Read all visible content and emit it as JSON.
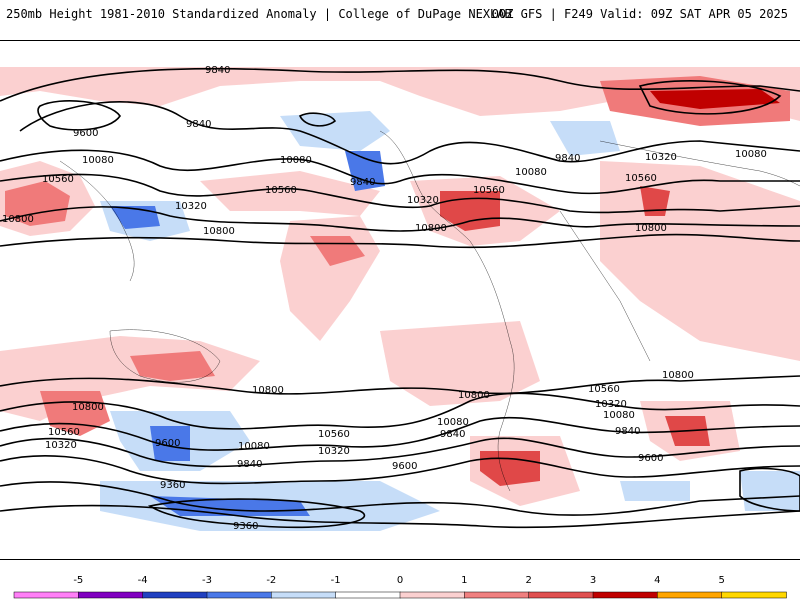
{
  "header": {
    "title": "250mb Height 1981-2010 Standardized Anomaly | College of DuPage NEXLAB",
    "run_info": "00Z GFS | F249 Valid: 09Z SAT APR 05 2025"
  },
  "contour_labels": [
    "9840",
    "9600",
    "9840",
    "10080",
    "10080",
    "10560",
    "10800",
    "10320",
    "10800",
    "10560",
    "9840",
    "10320",
    "10800",
    "10080",
    "10560",
    "10800",
    "9840",
    "10320",
    "10560",
    "10800",
    "10080",
    "10560",
    "10320",
    "9600",
    "10080",
    "9840",
    "10560",
    "10320",
    "10800",
    "10800",
    "10080",
    "9840",
    "9600",
    "10560",
    "10320",
    "10080",
    "9840",
    "9600",
    "10800",
    "9360",
    "9360"
  ],
  "colorbar": {
    "ticks": [
      "-5",
      "-4",
      "-3",
      "-2",
      "-1",
      "0",
      "1",
      "2",
      "3",
      "4",
      "5"
    ],
    "colors": [
      "#ff7ff7",
      "#8000c0",
      "#2040c0",
      "#4a78e8",
      "#c6ddf8",
      "#ffffff",
      "#fbd0d0",
      "#f08080",
      "#e05050",
      "#c00000",
      "#ffa500",
      "#ffd700"
    ]
  },
  "anomaly_colors": {
    "light_pos": "#fbd0d0",
    "mid_pos": "#f07a7a",
    "strong_pos": "#e04848",
    "extreme_pos": "#c00000",
    "light_neg": "#c6ddf8",
    "mid_neg": "#4a78e8"
  }
}
